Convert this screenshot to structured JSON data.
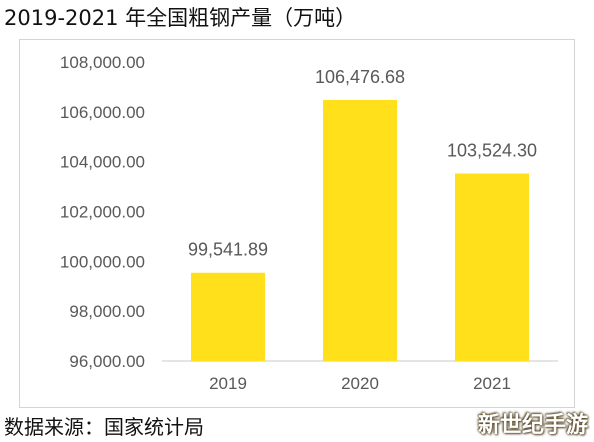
{
  "title": "2019-2021 年全国粗钢产量（万吨）",
  "source": "数据来源：国家统计局",
  "watermark": "新世纪手游",
  "colors": {
    "bar": "#FFE01B",
    "axis": "#c8c8c8",
    "text": "#595959"
  },
  "chart_data": {
    "type": "bar",
    "categories": [
      "2019",
      "2020",
      "2021"
    ],
    "values": [
      99541.89,
      106476.68,
      103524.3
    ],
    "value_labels": [
      "99,541.89",
      "106,476.68",
      "103,524.30"
    ],
    "ylim": [
      96000,
      108000
    ],
    "yticks": [
      96000,
      98000,
      100000,
      102000,
      104000,
      106000,
      108000
    ],
    "ytick_labels": [
      "96,000.00",
      "98,000.00",
      "100,000.00",
      "102,000.00",
      "104,000.00",
      "106,000.00",
      "108,000.00"
    ],
    "grid": false,
    "legend": "none",
    "xlabel": "",
    "ylabel": ""
  }
}
